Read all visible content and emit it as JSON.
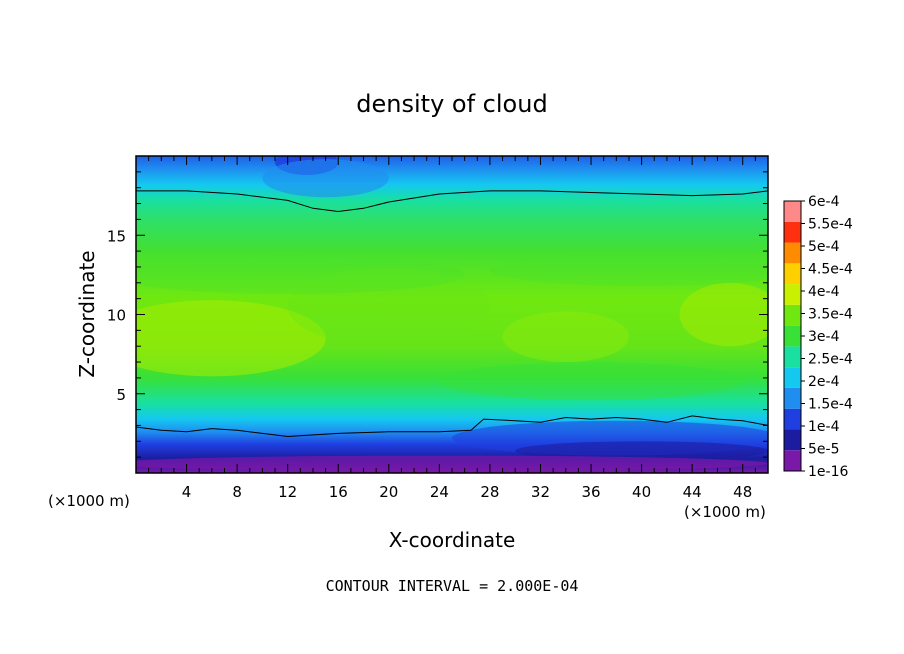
{
  "chart_data": {
    "type": "heatmap",
    "title": "density of cloud",
    "xlabel": "X-coordinate",
    "ylabel": "Z-coordinate",
    "x_unit_left": "(×1000 m)",
    "x_unit_right": "(×1000 m)",
    "xlim": [
      0,
      50
    ],
    "ylim": [
      0,
      20
    ],
    "x_ticks": [
      4,
      8,
      12,
      16,
      20,
      24,
      28,
      32,
      36,
      40,
      44,
      48
    ],
    "x_tick_labels": [
      "4",
      "8",
      "12",
      "16",
      "20",
      "24",
      "28",
      "32",
      "36",
      "40",
      "44",
      "48"
    ],
    "y_ticks": [
      5,
      10,
      15
    ],
    "y_tick_labels": [
      "5",
      "10",
      "15"
    ],
    "footer": "CONTOUR INTERVAL = 2.000E-04",
    "colorbar": {
      "levels": [
        "1e-16",
        "5e-5",
        "1e-4",
        "1.5e-4",
        "2e-4",
        "2.5e-4",
        "3e-4",
        "3.5e-4",
        "4e-4",
        "4.5e-4",
        "5e-4",
        "5.5e-4",
        "6e-4"
      ],
      "colors": [
        "#7a18a8",
        "#1c1ca0",
        "#1f3fe0",
        "#1f8ef0",
        "#14c8f0",
        "#19e0a0",
        "#38e038",
        "#70e810",
        "#c8f000",
        "#ffd000",
        "#ff8c00",
        "#ff3010",
        "#ff8888"
      ]
    },
    "contour_lines": [
      {
        "level": "2.000E-04",
        "x": [
          0,
          4,
          8,
          12,
          14,
          16,
          18,
          20,
          24,
          28,
          32,
          36,
          40,
          44,
          48,
          50
        ],
        "z": [
          17.8,
          17.8,
          17.6,
          17.2,
          16.7,
          16.5,
          16.7,
          17.1,
          17.6,
          17.8,
          17.8,
          17.7,
          17.6,
          17.5,
          17.6,
          17.8
        ]
      },
      {
        "level": "2.000E-04",
        "x": [
          0,
          2,
          4,
          6,
          8,
          10,
          12,
          16,
          20,
          24,
          26.5,
          27.5,
          30,
          32,
          34,
          36,
          38,
          40,
          42,
          44,
          46,
          48,
          50
        ],
        "z": [
          2.9,
          2.7,
          2.6,
          2.8,
          2.7,
          2.5,
          2.3,
          2.5,
          2.6,
          2.6,
          2.7,
          3.4,
          3.3,
          3.2,
          3.5,
          3.4,
          3.5,
          3.4,
          3.2,
          3.6,
          3.4,
          3.3,
          3.0
        ]
      }
    ]
  }
}
